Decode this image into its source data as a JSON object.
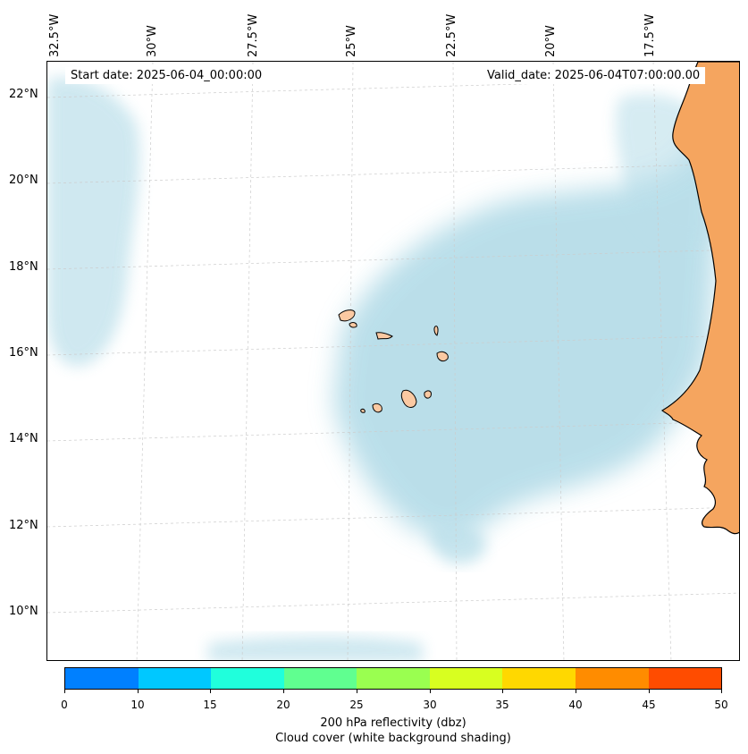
{
  "map": {
    "start_date": "Start date: 2025-06-04_00:00:00",
    "valid_date": "Valid_date: 2025-06-04T07:00:00.00",
    "lon_labels": [
      "32.5°W",
      "30°W",
      "27.5°W",
      "25°W",
      "22.5°W",
      "20°W",
      "17.5°W"
    ],
    "lat_labels": [
      "22°N",
      "20°N",
      "18°N",
      "16°N",
      "14°N",
      "12°N",
      "10°N"
    ],
    "colors": {
      "cloud": "#aed9e6",
      "land": "#f5a55f",
      "islands": "#fbc9a2",
      "coastline": "#000000",
      "grid": "#cccccc"
    }
  },
  "colorbar": {
    "colors": [
      "#0080ff",
      "#00c8ff",
      "#20ffdc",
      "#60ff90",
      "#9aff50",
      "#d8ff20",
      "#ffd800",
      "#ff8c00",
      "#ff4c00"
    ],
    "ticks": [
      "0",
      "10",
      "15",
      "20",
      "25",
      "30",
      "35",
      "40",
      "45",
      "50"
    ],
    "label": "200 hPa reflectivity (dbz)",
    "sublabel": "Cloud cover (white background shading)"
  }
}
